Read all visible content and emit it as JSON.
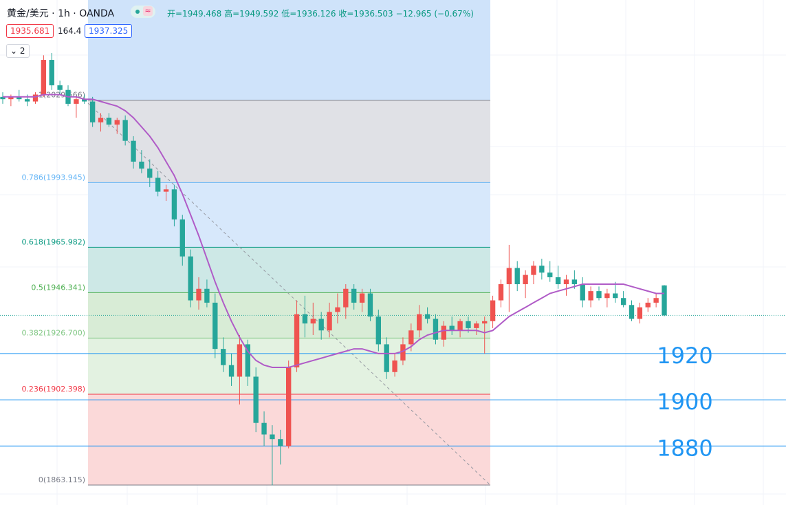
{
  "header": {
    "symbol": "黄金/美元 · 1h · OANDA",
    "ohlc": "开=1949.468 高=1949.592 低=1936.126 收=1936.503 −12.965 (−0.67%)",
    "bid": "1935.681",
    "spread": "164.4",
    "ask": "1937.325",
    "collapsed": "2"
  },
  "chart_data": {
    "type": "candlestick",
    "ylim": [
      1854.5,
      2072.9
    ],
    "up_color": "#ef5350",
    "down_color": "#26a69a",
    "open": [
      2031,
      2030,
      2031,
      2030,
      2029,
      2032,
      2047,
      2036,
      2034,
      2028,
      2030,
      2029,
      2020,
      2022,
      2019,
      2021,
      2012,
      2003,
      2000,
      1996,
      1990,
      1991,
      1978,
      1962,
      1943,
      1948,
      1942,
      1922,
      1915,
      1910,
      1924,
      1910,
      1890,
      1885,
      1883,
      1880,
      1914,
      1937,
      1933,
      1935,
      1930,
      1938,
      1940,
      1948,
      1942,
      1946,
      1936,
      1924,
      1912,
      1917,
      1924,
      1930,
      1937,
      1935,
      1926,
      1932,
      1930,
      1934,
      1931,
      1933,
      1934,
      1943,
      1950,
      1957,
      1950,
      1954,
      1958,
      1955,
      1953,
      1950,
      1952,
      1950,
      1943,
      1947,
      1944,
      1946,
      1944,
      1941,
      1935,
      1940,
      1942,
      1949.468
    ],
    "high": [
      2033,
      2032,
      2034,
      2032,
      2033,
      2049,
      2050,
      2038,
      2036,
      2031,
      2032,
      2031,
      2024,
      2024,
      2022,
      2023,
      2014,
      2008,
      2004,
      1999,
      1993,
      1993,
      1980,
      1965,
      1953,
      1952,
      1946,
      1927,
      1920,
      1928,
      1926,
      1914,
      1895,
      1889,
      1887,
      1917,
      1943,
      1945,
      1942,
      1938,
      1942,
      1946,
      1950,
      1950,
      1948,
      1948,
      1939,
      1927,
      1920,
      1927,
      1933,
      1941,
      1940,
      1937,
      1934,
      1936,
      1935,
      1936,
      1934,
      1936,
      1945,
      1952,
      1967,
      1960,
      1956,
      1960,
      1961,
      1960,
      1958,
      1954,
      1956,
      1953,
      1949,
      1949,
      1948,
      1951,
      1947,
      1943,
      1942,
      1944,
      1946,
      1949.592
    ],
    "low": [
      2028,
      2027,
      2029,
      2027,
      2028,
      2031,
      2034,
      2032,
      2027,
      2022,
      2028,
      2018,
      2016,
      2018,
      2015,
      2010,
      2000,
      1998,
      1992,
      1988,
      1986,
      1975,
      1958,
      1940,
      1939,
      1940,
      1918,
      1912,
      1906,
      1898,
      1906,
      1886,
      1880,
      1863,
      1872,
      1879,
      1912,
      1927,
      1928,
      1926,
      1927,
      1933,
      1935,
      1939,
      1938,
      1934,
      1921,
      1909,
      1910,
      1915,
      1921,
      1927,
      1933,
      1924,
      1923,
      1928,
      1927,
      1929,
      1928,
      1920,
      1931,
      1940,
      1938,
      1947,
      1944,
      1950,
      1952,
      1951,
      1948,
      1945,
      1948,
      1940,
      1940,
      1943,
      1940,
      1942,
      1940,
      1934,
      1933,
      1938,
      1940,
      1936.126
    ],
    "close": [
      2030,
      2031,
      2030,
      2029,
      2032,
      2047,
      2036,
      2034,
      2028,
      2030,
      2029,
      2020,
      2022,
      2019,
      2021,
      2012,
      2003,
      2000,
      1996,
      1990,
      1991,
      1978,
      1962,
      1943,
      1948,
      1942,
      1922,
      1915,
      1910,
      1924,
      1910,
      1890,
      1885,
      1883,
      1880,
      1914,
      1937,
      1933,
      1935,
      1930,
      1938,
      1940,
      1948,
      1942,
      1946,
      1936,
      1924,
      1912,
      1917,
      1924,
      1930,
      1937,
      1935,
      1926,
      1932,
      1930,
      1934,
      1931,
      1933,
      1934,
      1943,
      1950,
      1957,
      1950,
      1954,
      1958,
      1955,
      1953,
      1950,
      1952,
      1950,
      1943,
      1947,
      1944,
      1946,
      1944,
      1941,
      1935,
      1940,
      1942,
      1944,
      1936.503
    ],
    "ma": {
      "color": "#b05bc7",
      "values": [
        2031,
        2031,
        2031,
        2031,
        2031,
        2032,
        2032,
        2032,
        2031,
        2031,
        2030,
        2030,
        2029,
        2028,
        2027,
        2025,
        2022,
        2018,
        2014,
        2009,
        2003,
        1997,
        1989,
        1980,
        1971,
        1961,
        1951,
        1942,
        1934,
        1927,
        1921,
        1917,
        1915,
        1914,
        1914,
        1914,
        1915,
        1916,
        1917,
        1918,
        1919,
        1920,
        1921,
        1922,
        1922,
        1921,
        1920,
        1920,
        1920,
        1921,
        1923,
        1926,
        1928,
        1929,
        1930,
        1930,
        1930,
        1930,
        1930,
        1929,
        1930,
        1933,
        1936,
        1938,
        1940,
        1942,
        1944,
        1946,
        1947,
        1948,
        1949,
        1950,
        1950,
        1950,
        1950,
        1950,
        1950,
        1949,
        1948,
        1947,
        1946,
        1946
      ]
    },
    "last_price": 1936.503,
    "fib_levels": [
      {
        "price": 2029.566,
        "label": "1(2029.566)",
        "color": "#787b86",
        "zone": "#e0e1e6"
      },
      {
        "price": 1993.945,
        "label": "0.786(1993.945)",
        "color": "#64b5f6",
        "zone": "#d7e8fb"
      },
      {
        "price": 1965.982,
        "label": "0.618(1965.982)",
        "color": "#089981",
        "zone": "#cde8e6"
      },
      {
        "price": 1946.341,
        "label": "0.5(1946.341)",
        "color": "#4caf50",
        "zone": "#d8ecd6"
      },
      {
        "price": 1926.7,
        "label": "0.382(1926.700)",
        "color": "#81c784",
        "zone": "#e3f2e1"
      },
      {
        "price": 1902.398,
        "label": "0.236(1902.398)",
        "color": "#f23645",
        "zone": "#fbd9d9"
      },
      {
        "price": 1863.115,
        "label": "0(1863.115)",
        "color": "#787b86"
      }
    ],
    "fib_top_zone": "#cfe3fa",
    "price_lines": [
      {
        "value": 1920,
        "label": "1920"
      },
      {
        "value": 1900,
        "label": "1900"
      },
      {
        "value": 1880,
        "label": "1880"
      }
    ],
    "price_line_color": "#2196f3"
  }
}
